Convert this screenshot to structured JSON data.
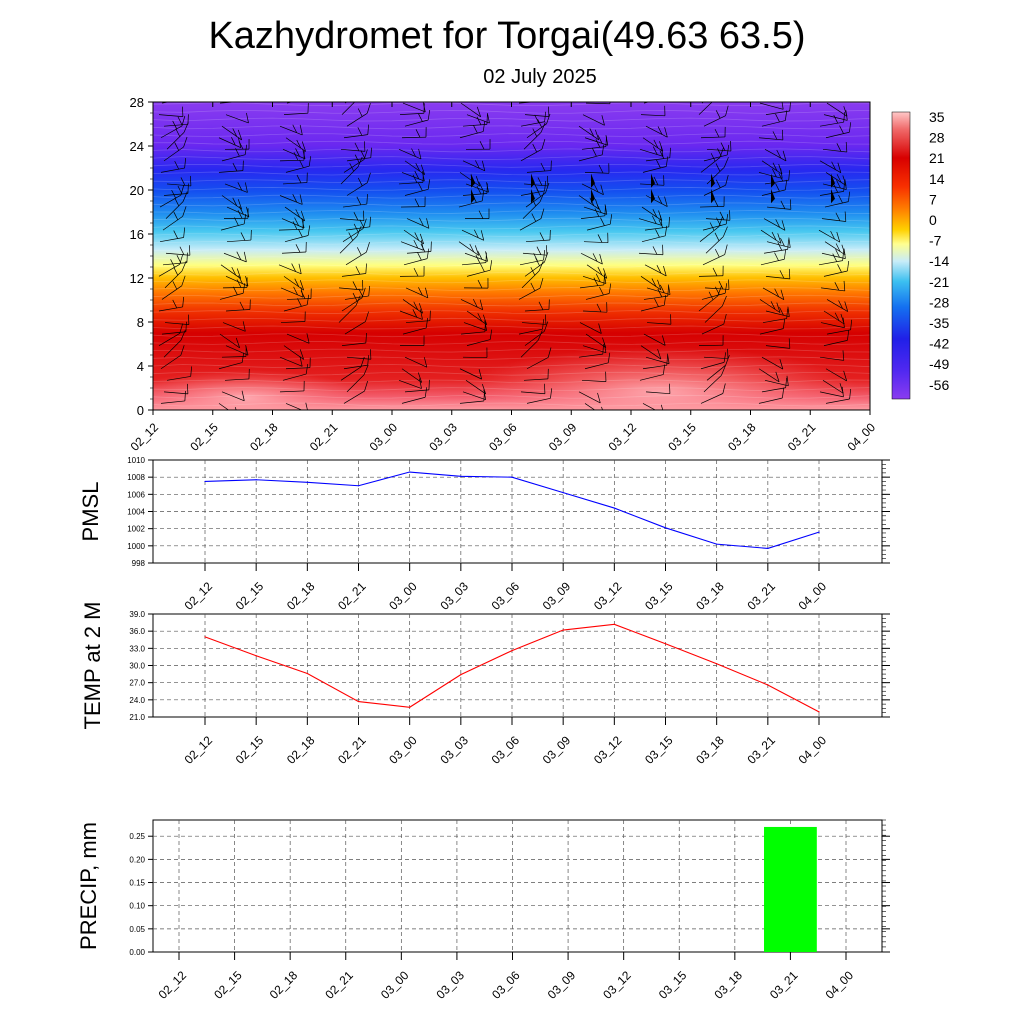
{
  "header": {
    "title": "Kazhydromet for Torgai(49.63 63.5)",
    "date": "02 July 2025"
  },
  "colorbar": {
    "labels": [
      "35",
      "28",
      "21",
      "14",
      "7",
      "0",
      "-7",
      "-14",
      "-21",
      "-28",
      "-35",
      "-42",
      "-49",
      "-56"
    ]
  },
  "chart_data": [
    {
      "type": "heatmap",
      "title": "",
      "x": [
        "02_12",
        "02_15",
        "02_18",
        "02_21",
        "03_00",
        "03_03",
        "03_06",
        "03_09",
        "03_12",
        "03_15",
        "03_18",
        "03_21",
        "04_00"
      ],
      "y_ticks": [
        "0",
        "4",
        "8",
        "12",
        "16",
        "20",
        "24",
        "28"
      ],
      "ylim": [
        0,
        28
      ],
      "colorbar_range": [
        -56,
        35
      ],
      "value_description_levels_y": [
        0,
        2,
        4,
        6,
        8,
        10,
        12,
        13.5,
        16,
        20,
        24,
        28
      ],
      "values_approx": [
        [
          31,
          29,
          29,
          31,
          35,
          34,
          32,
          33,
          35,
          35,
          34,
          32,
          30
        ],
        [
          28,
          27,
          27,
          28,
          30,
          30,
          29,
          30,
          31,
          31,
          30,
          29,
          28
        ],
        [
          24,
          23,
          24,
          24,
          26,
          26,
          26,
          27,
          27,
          27,
          26,
          25,
          24
        ],
        [
          20,
          20,
          20,
          21,
          22,
          22,
          22,
          22,
          22,
          22,
          21,
          21,
          20
        ],
        [
          15,
          15,
          15,
          16,
          16,
          16,
          16,
          16,
          16,
          16,
          16,
          15,
          15
        ],
        [
          8,
          8,
          8,
          9,
          9,
          9,
          9,
          9,
          9,
          9,
          9,
          8,
          8
        ],
        [
          0,
          0,
          0,
          0,
          0,
          0,
          0,
          0,
          0,
          0,
          0,
          0,
          0
        ],
        [
          -14,
          -14,
          -14,
          -14,
          -14,
          -14,
          -14,
          -14,
          -14,
          -14,
          -14,
          -14,
          -14
        ],
        [
          -28,
          -28,
          -28,
          -28,
          -28,
          -28,
          -28,
          -28,
          -28,
          -28,
          -28,
          -28,
          -28
        ],
        [
          -42,
          -42,
          -42,
          -42,
          -42,
          -42,
          -42,
          -42,
          -42,
          -42,
          -42,
          -42,
          -42
        ],
        [
          -52,
          -52,
          -52,
          -52,
          -52,
          -52,
          -52,
          -52,
          -52,
          -52,
          -52,
          -52,
          -52
        ],
        [
          -56,
          -56,
          -56,
          -56,
          -56,
          -56,
          -56,
          -56,
          -56,
          -56,
          -56,
          -56,
          -56
        ]
      ]
    },
    {
      "type": "line",
      "ylabel": "PMSL",
      "x": [
        "02_12",
        "02_15",
        "02_18",
        "02_21",
        "03_00",
        "03_03",
        "03_06",
        "03_09",
        "03_12",
        "03_15",
        "03_18",
        "03_21",
        "04_00"
      ],
      "values": [
        1007.5,
        1007.7,
        1007.4,
        1007.0,
        1008.6,
        1008.1,
        1008.0,
        1006.2,
        1004.4,
        1002.1,
        1000.2,
        999.7,
        1001.6
      ],
      "y_ticks": [
        "998",
        "1000",
        "1002",
        "1004",
        "1006",
        "1008",
        "1010"
      ],
      "ylim": [
        998,
        1010
      ],
      "color": "#0000ff"
    },
    {
      "type": "line",
      "ylabel": "TEMP at 2 M",
      "x": [
        "02_12",
        "02_15",
        "02_18",
        "02_21",
        "03_00",
        "03_03",
        "03_06",
        "03_09",
        "03_12",
        "03_15",
        "03_18",
        "03_21",
        "04_00"
      ],
      "values": [
        35.0,
        31.7,
        28.6,
        23.7,
        22.7,
        28.4,
        32.6,
        36.2,
        37.2,
        33.8,
        30.3,
        26.6,
        21.9
      ],
      "y_ticks": [
        "21.0",
        "24.0",
        "27.0",
        "30.0",
        "33.0",
        "36.0",
        "39.0"
      ],
      "ylim": [
        21,
        39
      ],
      "color": "#ff0000"
    },
    {
      "type": "bar",
      "ylabel": "PRECIP, mm",
      "x": [
        "02_12",
        "02_15",
        "02_18",
        "02_21",
        "03_00",
        "03_03",
        "03_06",
        "03_09",
        "03_12",
        "03_15",
        "03_18",
        "03_21",
        "04_00"
      ],
      "values": [
        0,
        0,
        0,
        0,
        0,
        0,
        0,
        0,
        0,
        0,
        0,
        0.27,
        0
      ],
      "y_ticks": [
        "0.00",
        "0.05",
        "0.10",
        "0.15",
        "0.20",
        "0.25"
      ],
      "ylim": [
        0,
        0.285
      ],
      "color": "#00ff00"
    }
  ]
}
